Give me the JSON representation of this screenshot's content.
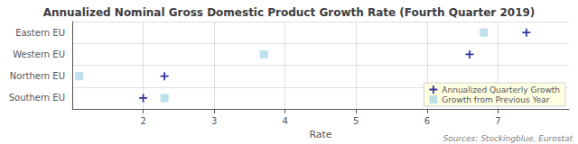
{
  "chart_data": {
    "type": "scatter",
    "title": "Annualized Nominal Gross Domestic Product Growth Rate (Fourth Quarter 2019)",
    "xlabel": "Rate",
    "annotation": "Sources: Stockingblue, Eurostat",
    "orientation": "horizontal",
    "categories": [
      "Eastern EU",
      "Western EU",
      "Northern EU",
      "Southern EU"
    ],
    "series": [
      {
        "name": "Annualized Quarterly Growth",
        "color": "#00008B",
        "marker": "plus",
        "values": [
          7.4,
          6.6,
          2.3,
          2.0
        ]
      },
      {
        "name": "Growth from Previous Year",
        "color": "#ADD8E6",
        "marker": "square",
        "values": [
          6.8,
          3.7,
          1.1,
          2.3
        ]
      }
    ],
    "xlim": [
      1,
      8
    ],
    "xticks": [
      2,
      3,
      4,
      5,
      6,
      7
    ],
    "grid": true,
    "legend": "lower right"
  }
}
